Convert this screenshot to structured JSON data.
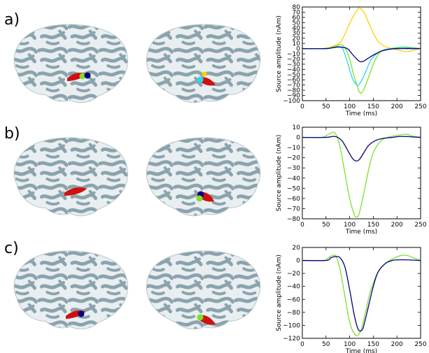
{
  "panels": [
    {
      "label": "a)",
      "brain_markers": {
        "left": [
          {
            "kind": "patch",
            "color": "#d01010"
          },
          {
            "kind": "dot",
            "color": "#7ee02a"
          },
          {
            "kind": "dot",
            "color": "#000080"
          }
        ],
        "right": [
          {
            "kind": "patch",
            "color": "#d01010"
          },
          {
            "kind": "dot",
            "color": "#ffd000"
          },
          {
            "kind": "dot",
            "color": "#28d8ee"
          }
        ]
      }
    },
    {
      "label": "b)",
      "brain_markers": {
        "left": [
          {
            "kind": "patch",
            "color": "#d01010"
          }
        ],
        "right": [
          {
            "kind": "patch",
            "color": "#d01010"
          },
          {
            "kind": "dot",
            "color": "#000080"
          },
          {
            "kind": "dot",
            "color": "#7ee02a"
          }
        ]
      }
    },
    {
      "label": "c)",
      "brain_markers": {
        "left": [
          {
            "kind": "patch",
            "color": "#d01010"
          },
          {
            "kind": "dot",
            "color": "#000080"
          }
        ],
        "right": [
          {
            "kind": "patch",
            "color": "#d01010"
          },
          {
            "kind": "dot",
            "color": "#7ee02a"
          }
        ]
      }
    }
  ],
  "chart_data": [
    {
      "type": "line",
      "xlabel": "Time (ms)",
      "ylabel": "Source amplitude (nAm)",
      "xlim": [
        0,
        250
      ],
      "ylim": [
        -100,
        80
      ],
      "xticks": [
        0,
        50,
        100,
        150,
        200,
        250
      ],
      "yticks": [
        -100,
        -90,
        -80,
        -70,
        -60,
        -50,
        -40,
        -30,
        -20,
        -10,
        0,
        10,
        20,
        30,
        40,
        50,
        60,
        70,
        80
      ],
      "yticklabels": [
        "−100",
        "−90",
        "−80",
        "−70",
        "−60",
        "−50",
        "−40",
        "−30",
        "−20",
        "−10",
        "0",
        "10",
        "20",
        "30",
        "40",
        "50",
        "60",
        "70",
        "80"
      ],
      "series": [
        {
          "color": "#ffd000",
          "x": [
            0,
            40,
            60,
            80,
            90,
            100,
            110,
            120,
            130,
            140,
            150,
            160,
            175,
            190,
            200,
            220,
            235,
            250
          ],
          "y": [
            0,
            0,
            3,
            12,
            28,
            48,
            66,
            78,
            70,
            50,
            30,
            14,
            4,
            0,
            -2,
            -6,
            -3,
            0
          ]
        },
        {
          "color": "#7ee02a",
          "x": [
            0,
            50,
            65,
            75,
            80,
            90,
            100,
            110,
            120,
            125,
            130,
            140,
            150,
            160,
            170,
            185,
            200,
            220,
            250
          ],
          "y": [
            0,
            0,
            3,
            6,
            8,
            2,
            -20,
            -55,
            -82,
            -85,
            -78,
            -55,
            -30,
            -12,
            -3,
            0,
            2,
            3,
            0
          ]
        },
        {
          "color": "#28d8ee",
          "x": [
            0,
            50,
            65,
            75,
            85,
            95,
            105,
            115,
            120,
            125,
            135,
            145,
            160,
            175,
            190,
            210,
            230,
            250
          ],
          "y": [
            0,
            0,
            2,
            4,
            0,
            -25,
            -55,
            -70,
            -68,
            -62,
            -42,
            -22,
            -8,
            -2,
            0,
            2,
            1,
            0
          ]
        },
        {
          "color": "#000080",
          "x": [
            0,
            50,
            65,
            80,
            95,
            105,
            115,
            122,
            130,
            140,
            155,
            170,
            185,
            200,
            220,
            250
          ],
          "y": [
            0,
            0,
            2,
            3,
            0,
            -10,
            -20,
            -25,
            -24,
            -18,
            -10,
            -4,
            -1,
            0,
            0,
            0
          ]
        }
      ]
    },
    {
      "type": "line",
      "xlabel": "Time (ms)",
      "ylabel": "Source amplitude (nAm)",
      "xlim": [
        0,
        250
      ],
      "ylim": [
        -80,
        10
      ],
      "xticks": [
        0,
        50,
        100,
        150,
        200,
        250
      ],
      "yticks": [
        -80,
        -70,
        -60,
        -50,
        -40,
        -30,
        -20,
        -10,
        0,
        10
      ],
      "yticklabels": [
        "−80",
        "−70",
        "−60",
        "−50",
        "−40",
        "−30",
        "−20",
        "−10",
        "0",
        "10"
      ],
      "series": [
        {
          "color": "#7ee02a",
          "x": [
            0,
            40,
            55,
            65,
            72,
            80,
            90,
            100,
            110,
            115,
            120,
            130,
            140,
            150,
            165,
            180,
            200,
            220,
            235,
            250
          ],
          "y": [
            0,
            0,
            3,
            5,
            2,
            -10,
            -35,
            -60,
            -76,
            -78,
            -75,
            -55,
            -32,
            -15,
            -4,
            0,
            2,
            3,
            1,
            0
          ]
        },
        {
          "color": "#000080",
          "x": [
            0,
            50,
            65,
            75,
            85,
            95,
            105,
            112,
            120,
            130,
            140,
            155,
            170,
            190,
            210,
            250
          ],
          "y": [
            0,
            0,
            1,
            0,
            -4,
            -12,
            -20,
            -23,
            -22,
            -15,
            -8,
            -3,
            -1,
            0,
            1,
            0
          ]
        }
      ]
    },
    {
      "type": "line",
      "xlabel": "Time (ms)",
      "ylabel": "Source amplitude (nAm)",
      "xlim": [
        0,
        250
      ],
      "ylim": [
        -120,
        20
      ],
      "xticks": [
        0,
        50,
        100,
        150,
        200,
        250
      ],
      "yticks": [
        -120,
        -100,
        -80,
        -60,
        -40,
        -20,
        0,
        20
      ],
      "yticklabels": [
        "−120",
        "−100",
        "−80",
        "−60",
        "−40",
        "−20",
        "0",
        "20"
      ],
      "series": [
        {
          "color": "#7ee02a",
          "x": [
            0,
            45,
            55,
            65,
            72,
            80,
            90,
            100,
            110,
            118,
            125,
            135,
            145,
            160,
            175,
            190,
            205,
            220,
            235,
            250
          ],
          "y": [
            0,
            0,
            4,
            8,
            5,
            -15,
            -55,
            -95,
            -113,
            -115,
            -105,
            -75,
            -45,
            -18,
            -5,
            2,
            7,
            8,
            4,
            0
          ]
        },
        {
          "color": "#000080",
          "x": [
            0,
            50,
            60,
            70,
            80,
            90,
            100,
            110,
            118,
            125,
            130,
            140,
            150,
            160,
            175,
            190,
            210,
            250
          ],
          "y": [
            0,
            0,
            4,
            6,
            4,
            -10,
            -45,
            -85,
            -106,
            -108,
            -100,
            -70,
            -40,
            -18,
            -5,
            0,
            1,
            0
          ]
        }
      ]
    }
  ]
}
